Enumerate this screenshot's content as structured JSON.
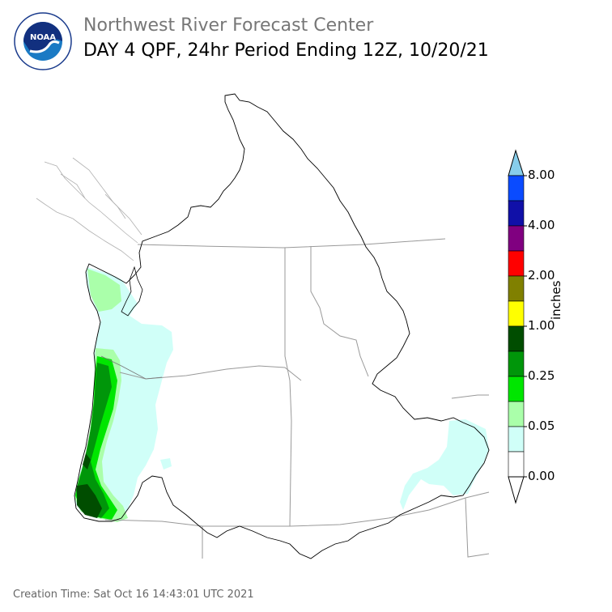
{
  "header": {
    "agency": "Northwest River Forecast Center",
    "product": "DAY 4 QPF, 24hr Period Ending 12Z, 10/20/21",
    "logo_text": "NOAA",
    "logo_ring_text": "NATIONAL OCEANIC AND ATMOSPHERIC ADMINISTRATION - U.S. DEPARTMENT OF COMMERCE"
  },
  "colorbar": {
    "unit": "inches",
    "labels": [
      "8.00",
      "4.00",
      "2.00",
      "1.00",
      "0.25",
      "0.05",
      "0.00"
    ],
    "colors_top_to_bottom": [
      "#87ceeb",
      "#0a4bff",
      "#1010a8",
      "#800080",
      "#ff0000",
      "#808000",
      "#ffff00",
      "#004d00",
      "#00960a",
      "#00e600",
      "#aaffaa",
      "#d0fff8",
      "#ffffff"
    ]
  },
  "map": {
    "legend_colors": {
      "trace": "#d0fff8",
      "light": "#aaffaa",
      "moderate": "#00e600",
      "heavy": "#00960a",
      "very_heavy": "#004d00"
    },
    "boundary_color": "#000000",
    "state_line_color": "#999999"
  },
  "footer": {
    "creation_time": "Creation Time: Sat Oct 16 14:43:01 UTC 2021"
  }
}
